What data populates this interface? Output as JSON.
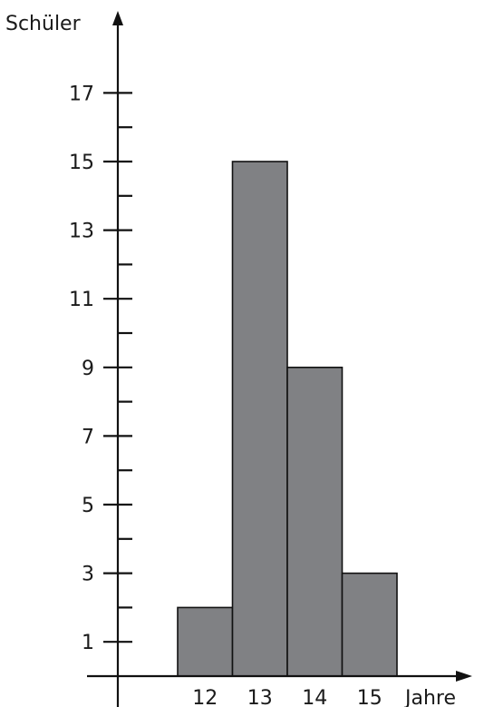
{
  "chart_data": {
    "type": "bar",
    "ylabel": "Schüler",
    "xlabel": "Jahre",
    "categories": [
      "12",
      "13",
      "14",
      "15"
    ],
    "values": [
      2,
      15,
      9,
      3
    ],
    "ylim": [
      0,
      17
    ],
    "y_tick_labels": [
      "1",
      "3",
      "5",
      "7",
      "9",
      "11",
      "13",
      "15",
      "17"
    ],
    "grid": false,
    "bar_color": "#808184"
  }
}
